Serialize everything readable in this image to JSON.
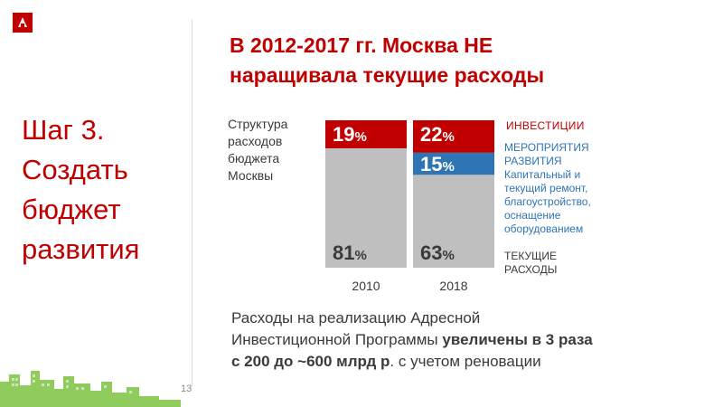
{
  "step_title": [
    "Шаг 3.",
    "Создать",
    "бюджет",
    "развития"
  ],
  "headline": [
    "В 2012-2017 гг. Москва НЕ",
    "наращивала текущие расходы"
  ],
  "structure_label": [
    "Структура",
    "расходов",
    "бюджета",
    "Москвы"
  ],
  "legend": {
    "investments": "ИНВЕСТИЦИИ",
    "development_title": [
      "МЕРОПРИЯТИЯ",
      "РАЗВИТИЯ"
    ],
    "development_desc": [
      "Капитальный и",
      "текущий ремонт,",
      "благоустройство,",
      "оснащение",
      "оборудованием"
    ],
    "current": [
      "ТЕКУЩИЕ",
      "РАСХОДЫ"
    ]
  },
  "summary": {
    "line1": "Расходы на реализацию Адресной",
    "line2_plain": "Инвестиционной Программы ",
    "line2_bold": "увеличены в 3 раза",
    "line3_bold": "с 200 до ~600 млрд р",
    "line3_plain": ". с учетом реновации"
  },
  "page_number": "13",
  "colors": {
    "investments": "#c00000",
    "development": "#2e75b6",
    "current": "#bfbfbf",
    "accent": "#c00000"
  },
  "chart_data": {
    "type": "bar",
    "stacked": true,
    "normalized": true,
    "categories": [
      "2010",
      "2018"
    ],
    "series": [
      {
        "name": "ТЕКУЩИЕ РАСХОДЫ",
        "values": [
          81,
          63
        ],
        "labels": [
          "81",
          "63"
        ]
      },
      {
        "name": "МЕРОПРИЯТИЯ РАЗВИТИЯ",
        "values": [
          0,
          15
        ],
        "labels": [
          null,
          "15"
        ]
      },
      {
        "name": "ИНВЕСТИЦИИ",
        "values": [
          19,
          22
        ],
        "labels": [
          "19",
          "22"
        ]
      }
    ],
    "unit": "%",
    "ylim": [
      0,
      100
    ]
  }
}
